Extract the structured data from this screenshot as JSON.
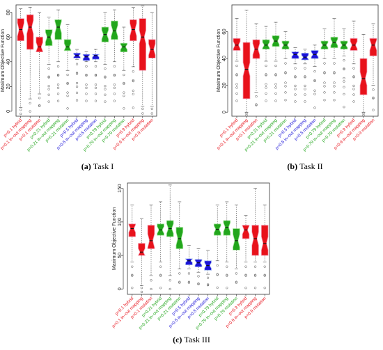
{
  "figure": {
    "colors": {
      "red": "#e8121b",
      "green": "#22a61c",
      "blue": "#1a12d8",
      "pink": "#f5a3b8",
      "lightgreen": "#a8e6a0",
      "lightblue": "#9fb4f2"
    }
  },
  "chart_data": [
    {
      "type": "box",
      "caption_letter": "(a)",
      "caption_text": "Task I",
      "ylabel": "Maximum Objective Function",
      "ylim": [
        -4,
        86
      ],
      "yticks": [
        0,
        20,
        40,
        60,
        80
      ],
      "categories": [
        "p=0.1 hybrid",
        "p=0.1 in–out mapping",
        "p=0.1 mutation",
        "p=0.21 hybrid",
        "p=0.21 in–out mapping",
        "p=0.21 mutation",
        "p=0.5 hybrid",
        "p=0.5 in–out mapping",
        "p=0.5 mutation",
        "p=0.79 hybrid",
        "p=0.79 in–out mapping",
        "p=0.79 mutation",
        "p=0.9 hybrid",
        "p=0.9 in–out mapping",
        "p=0.9 mutation"
      ],
      "category_colors": [
        "red",
        "red",
        "red",
        "green",
        "green",
        "green",
        "blue",
        "blue",
        "blue",
        "green",
        "green",
        "green",
        "red",
        "red",
        "red"
      ],
      "boxes": [
        {
          "min": 3,
          "q1": 57,
          "median": 66,
          "q3": 75,
          "max": 83
        },
        {
          "min": 10,
          "q1": 50,
          "median": 68,
          "q3": 78,
          "max": 84
        },
        {
          "min": 14,
          "q1": 48,
          "median": 52,
          "q3": 60,
          "max": 80
        },
        {
          "min": 38,
          "q1": 53,
          "median": 60,
          "q3": 66,
          "max": 76
        },
        {
          "min": 40,
          "q1": 58,
          "median": 68,
          "q3": 74,
          "max": 82
        },
        {
          "min": 33,
          "q1": 49,
          "median": 52,
          "q3": 58,
          "max": 70
        },
        {
          "min": 42,
          "q1": 43,
          "median": 45,
          "q3": 47,
          "max": 50
        },
        {
          "min": 40,
          "q1": 41,
          "median": 44,
          "q3": 46,
          "max": 48
        },
        {
          "min": 40,
          "q1": 42,
          "median": 45,
          "q3": 46,
          "max": 50
        },
        {
          "min": 38,
          "q1": 56,
          "median": 62,
          "q3": 68,
          "max": 80
        },
        {
          "min": 40,
          "q1": 58,
          "median": 65,
          "q3": 73,
          "max": 82
        },
        {
          "min": 33,
          "q1": 48,
          "median": 52,
          "q3": 55,
          "max": 68
        },
        {
          "min": 36,
          "q1": 57,
          "median": 66,
          "q3": 74,
          "max": 84
        },
        {
          "min": 4,
          "q1": 33,
          "median": 60,
          "q3": 75,
          "max": 85
        },
        {
          "min": 4,
          "q1": 43,
          "median": 50,
          "q3": 58,
          "max": 80
        }
      ]
    },
    {
      "type": "box",
      "caption_letter": "(b)",
      "caption_text": "Task II",
      "ylabel": "Maximum Objective Function",
      "ylim": [
        -3,
        80
      ],
      "yticks": [
        0,
        20,
        40,
        60
      ],
      "categories": [
        "p=0.1 hybrid",
        "p=0.1 in–out mapping",
        "p=0.1 mutation",
        "p=0.21 hybrid",
        "p=0.21 in–out mapping",
        "p=0.21 mutation",
        "p=0.5 hybrid",
        "p=0.5 in–out mapping",
        "p=0.5 mutation",
        "p=0.79 hybrid",
        "p=0.79 in–out mapping",
        "p=0.79 mutation",
        "p=0.9 hybrid",
        "p=0.9 in–out mapping",
        "p=0.9 mutation"
      ],
      "category_colors": [
        "red",
        "red",
        "red",
        "green",
        "green",
        "green",
        "blue",
        "blue",
        "blue",
        "green",
        "green",
        "green",
        "red",
        "red",
        "red"
      ],
      "boxes": [
        {
          "min": 38,
          "q1": 46,
          "median": 50,
          "q3": 55,
          "max": 70
        },
        {
          "min": 0,
          "q1": 10,
          "median": 32,
          "q3": 52,
          "max": 76
        },
        {
          "min": 15,
          "q1": 40,
          "median": 47,
          "q3": 54,
          "max": 66
        },
        {
          "min": 38,
          "q1": 47,
          "median": 50,
          "q3": 54,
          "max": 64
        },
        {
          "min": 38,
          "q1": 49,
          "median": 53,
          "q3": 57,
          "max": 67
        },
        {
          "min": 40,
          "q1": 47,
          "median": 50,
          "q3": 53,
          "max": 60
        },
        {
          "min": 36,
          "q1": 40,
          "median": 43,
          "q3": 45,
          "max": 48
        },
        {
          "min": 36,
          "q1": 39,
          "median": 41,
          "q3": 44,
          "max": 47
        },
        {
          "min": 34,
          "q1": 40,
          "median": 43,
          "q3": 46,
          "max": 50
        },
        {
          "min": 40,
          "q1": 47,
          "median": 50,
          "q3": 53,
          "max": 62
        },
        {
          "min": 40,
          "q1": 48,
          "median": 52,
          "q3": 56,
          "max": 70
        },
        {
          "min": 42,
          "q1": 47,
          "median": 50,
          "q3": 53,
          "max": 62
        },
        {
          "min": 36,
          "q1": 46,
          "median": 50,
          "q3": 55,
          "max": 68
        },
        {
          "min": 0,
          "q1": 13,
          "median": 25,
          "q3": 40,
          "max": 58
        },
        {
          "min": 20,
          "q1": 42,
          "median": 50,
          "q3": 55,
          "max": 66
        }
      ]
    },
    {
      "type": "box",
      "caption_letter": "(c)",
      "caption_text": "Task III",
      "ylabel": "Maximum Objective Function",
      "ylim": [
        -8,
        158
      ],
      "yticks": [
        0,
        50,
        100,
        150
      ],
      "categories": [
        "p=0.1 hybrid",
        "p=0.1 in–out mapping",
        "p=0.1 mutation",
        "p=0.21 hybrid",
        "p=0.21 in–out mapping",
        "p=0.21 mutation",
        "p=0.5 hybrid",
        "p=0.5 in–out mapping",
        "p=0.5 mutation",
        "p=0.79 hybrid",
        "p=0.79 in–out mapping",
        "p=0.79 mutation",
        "p=0.9 hybrid",
        "p=0.9 in–out mapping",
        "p=0.9 mutation"
      ],
      "category_colors": [
        "red",
        "red",
        "red",
        "green",
        "green",
        "green",
        "blue",
        "blue",
        "blue",
        "green",
        "green",
        "green",
        "red",
        "red",
        "red"
      ],
      "boxes": [
        {
          "min": 40,
          "q1": 78,
          "median": 90,
          "q3": 97,
          "max": 125
        },
        {
          "min": 5,
          "q1": 50,
          "median": 55,
          "q3": 68,
          "max": 105
        },
        {
          "min": 20,
          "q1": 60,
          "median": 72,
          "q3": 95,
          "max": 125
        },
        {
          "min": 40,
          "q1": 80,
          "median": 88,
          "q3": 97,
          "max": 130
        },
        {
          "min": 20,
          "q1": 78,
          "median": 90,
          "q3": 102,
          "max": 155
        },
        {
          "min": 30,
          "q1": 60,
          "median": 75,
          "q3": 92,
          "max": 130
        },
        {
          "min": 30,
          "q1": 36,
          "median": 42,
          "q3": 45,
          "max": 65
        },
        {
          "min": 25,
          "q1": 33,
          "median": 39,
          "q3": 44,
          "max": 60
        },
        {
          "min": 22,
          "q1": 28,
          "median": 35,
          "q3": 42,
          "max": 58
        },
        {
          "min": 42,
          "q1": 80,
          "median": 89,
          "q3": 97,
          "max": 125
        },
        {
          "min": 40,
          "q1": 80,
          "median": 92,
          "q3": 102,
          "max": 130
        },
        {
          "min": 30,
          "q1": 58,
          "median": 72,
          "q3": 90,
          "max": 125
        },
        {
          "min": 40,
          "q1": 75,
          "median": 88,
          "q3": 95,
          "max": 110
        },
        {
          "min": 40,
          "q1": 50,
          "median": 75,
          "q3": 95,
          "max": 150
        },
        {
          "min": 40,
          "q1": 50,
          "median": 68,
          "q3": 95,
          "max": 125
        }
      ]
    }
  ]
}
